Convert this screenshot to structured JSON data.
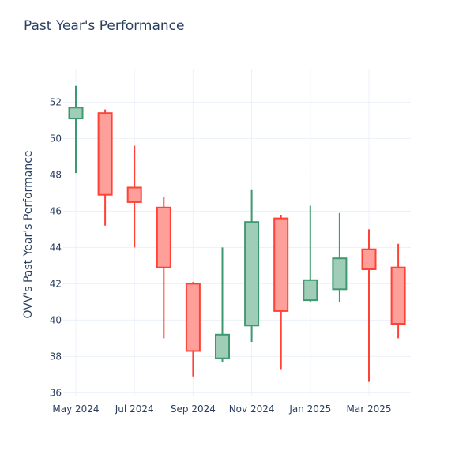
{
  "chart_data": {
    "type": "candlestick",
    "title": "Past Year's Performance",
    "xlabel": "",
    "ylabel": "OVV's Past Year's Performance",
    "ylim": [
      35.8,
      53.8
    ],
    "yticks": [
      36,
      38,
      40,
      42,
      44,
      46,
      48,
      50,
      52
    ],
    "xticks": [
      {
        "label": "May 2024",
        "month_index": 0
      },
      {
        "label": "Jul 2024",
        "month_index": 2
      },
      {
        "label": "Sep 2024",
        "month_index": 4
      },
      {
        "label": "Nov 2024",
        "month_index": 6
      },
      {
        "label": "Jan 2025",
        "month_index": 8
      },
      {
        "label": "Mar 2025",
        "month_index": 10
      }
    ],
    "grid": true,
    "colors": {
      "increasing": "#3d9970",
      "decreasing": "#ff4136",
      "title": "#2a3f5f",
      "grid": "#ebf0f8"
    },
    "candles": [
      {
        "month": "May 2024",
        "month_index": 0.0,
        "open": 51.1,
        "high": 52.9,
        "low": 48.1,
        "close": 51.7
      },
      {
        "month": "Jun 2024",
        "month_index": 1.0,
        "open": 51.4,
        "high": 51.6,
        "low": 45.2,
        "close": 46.9
      },
      {
        "month": "Jul 2024",
        "month_index": 2.0,
        "open": 47.3,
        "high": 49.6,
        "low": 44.0,
        "close": 46.5
      },
      {
        "month": "Aug 2024",
        "month_index": 3.0,
        "open": 46.2,
        "high": 46.8,
        "low": 39.0,
        "close": 42.9
      },
      {
        "month": "Sep 2024",
        "month_index": 4.0,
        "open": 42.0,
        "high": 42.1,
        "low": 36.9,
        "close": 38.3
      },
      {
        "month": "Oct 2024",
        "month_index": 5.0,
        "open": 37.9,
        "high": 44.0,
        "low": 37.7,
        "close": 39.2
      },
      {
        "month": "Nov 2024",
        "month_index": 6.0,
        "open": 39.7,
        "high": 47.2,
        "low": 38.8,
        "close": 45.4
      },
      {
        "month": "Dec 2024",
        "month_index": 7.0,
        "open": 45.6,
        "high": 45.8,
        "low": 37.3,
        "close": 40.5
      },
      {
        "month": "Jan 2025",
        "month_index": 8.0,
        "open": 41.1,
        "high": 46.3,
        "low": 41.0,
        "close": 42.2
      },
      {
        "month": "Feb 2025",
        "month_index": 9.0,
        "open": 41.7,
        "high": 45.9,
        "low": 41.0,
        "close": 43.4
      },
      {
        "month": "Mar 2025",
        "month_index": 10.0,
        "open": 43.9,
        "high": 45.0,
        "low": 36.6,
        "close": 42.8
      },
      {
        "month": "Apr 2025",
        "month_index": 11.0,
        "open": 42.9,
        "high": 44.2,
        "low": 39.0,
        "close": 39.8
      }
    ]
  }
}
